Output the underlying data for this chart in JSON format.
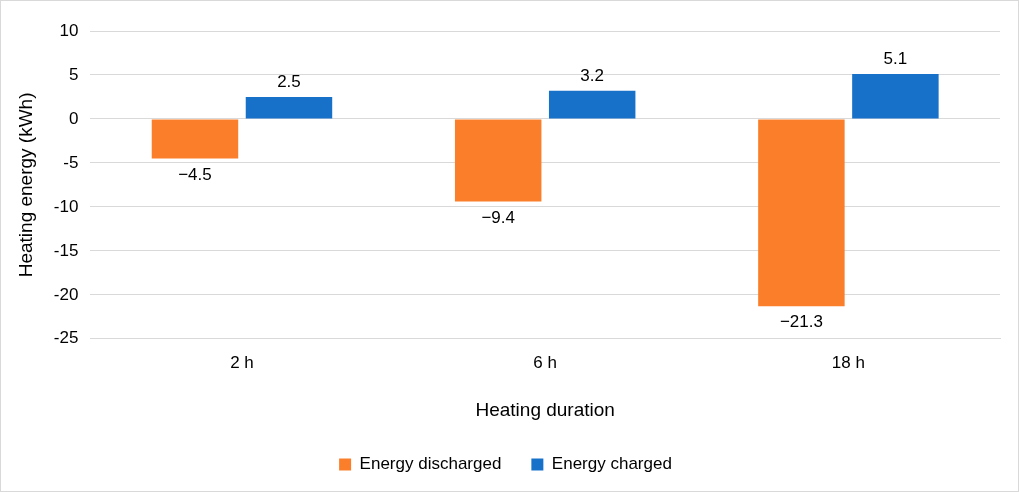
{
  "chart_data": {
    "type": "bar",
    "xlabel": "Heating duration",
    "ylabel": "Heating energy (kWh)",
    "categories": [
      "2 h",
      "6 h",
      "18 h"
    ],
    "series": [
      {
        "name": "Energy discharged",
        "color": "#fb7f2a",
        "values": [
          -4.5,
          -9.4,
          -21.3
        ],
        "value_labels": [
          "−4.5",
          "−9.4",
          "−21.3"
        ]
      },
      {
        "name": "Energy charged",
        "color": "#1771c9",
        "values": [
          2.5,
          3.2,
          5.1
        ],
        "value_labels": [
          "2.5",
          "3.2",
          "5.1"
        ]
      }
    ],
    "ylim": [
      -25,
      10
    ],
    "yticks": [
      -25,
      -20,
      -15,
      -10,
      -5,
      0,
      5,
      10
    ],
    "grid": "y",
    "legend": "bottom"
  }
}
